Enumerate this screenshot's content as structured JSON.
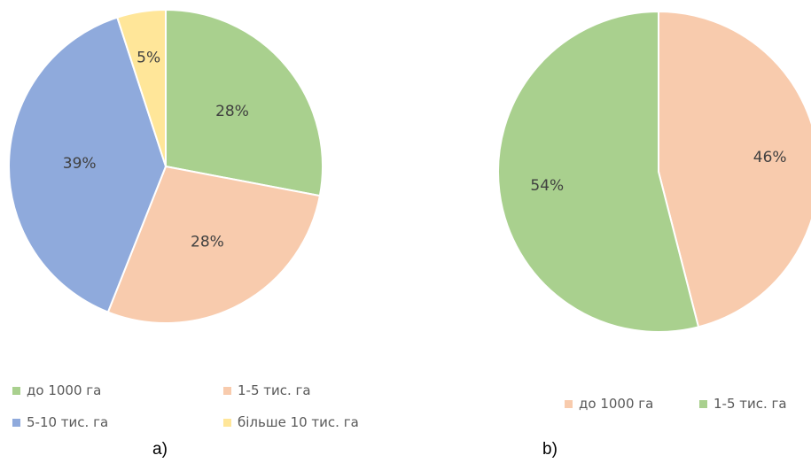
{
  "chart_data": [
    {
      "type": "pie",
      "caption": "a)",
      "slices": [
        {
          "label": "до 1000 га",
          "value": 28,
          "value_label": "28%",
          "color": "#a9d08e"
        },
        {
          "label": "1-5 тис. га",
          "value": 28,
          "value_label": "28%",
          "color": "#f8cbad"
        },
        {
          "label": "5-10 тис. га",
          "value": 39,
          "value_label": "39%",
          "color": "#8faadc"
        },
        {
          "label": "більше 10 тис. га",
          "value": 5,
          "value_label": "5%",
          "color": "#ffe699"
        }
      ],
      "legend_placement": "bottom"
    },
    {
      "type": "pie",
      "caption": "b)",
      "slices": [
        {
          "label": "до 1000 га",
          "value": 46,
          "value_label": "46%",
          "color": "#f8cbad"
        },
        {
          "label": "1-5 тис. га",
          "value": 54,
          "value_label": "54%",
          "color": "#a9d08e"
        }
      ],
      "legend_placement": "bottom"
    }
  ]
}
